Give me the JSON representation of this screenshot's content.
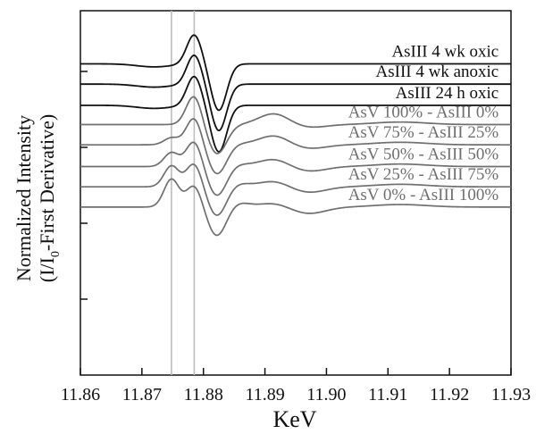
{
  "chart_data": {
    "type": "line",
    "xlabel": "KeV",
    "ylabel_line1": "Normalized Intensity",
    "ylabel_line2_pre": "(I/I",
    "ylabel_line2_sub": "0",
    "ylabel_line2_post": "-First Derivative)",
    "xlim": [
      11.86,
      11.93
    ],
    "xticks": [
      "11.86",
      "11.87",
      "11.88",
      "11.89",
      "11.90",
      "11.91",
      "11.92",
      "11.93"
    ],
    "reference_lines_x": [
      11.8748,
      11.8785
    ],
    "colors": {
      "asIII": "#111111",
      "asV": "#6f6f6f",
      "ref": "#bdbdbd"
    },
    "series": [
      {
        "name": "AsIII 4 wk oxic",
        "family": "asIII",
        "baseline": 6.15,
        "amp": 1.0
      },
      {
        "name": "AsIII 4 wk anoxic",
        "family": "asIII",
        "baseline": 5.75,
        "amp": 1.0
      },
      {
        "name": "AsIII 24 h oxic",
        "family": "asIII",
        "baseline": 5.33,
        "amp": 1.0
      },
      {
        "name": "AsV 100% - AsIII 0%",
        "family": "asV",
        "mix": 0.0,
        "baseline": 4.95
      },
      {
        "name": "AsV 75% - AsIII 25%",
        "family": "asV",
        "mix": 0.25,
        "baseline": 4.55
      },
      {
        "name": "AsV 50% - AsIII 50%",
        "family": "asV",
        "mix": 0.5,
        "baseline": 4.12
      },
      {
        "name": "AsV 25% - AsIII 75%",
        "family": "asV",
        "mix": 0.75,
        "baseline": 3.72
      },
      {
        "name": "AsV 0% - AsIII 100%",
        "family": "asV",
        "mix": 1.0,
        "baseline": 3.32
      }
    ]
  }
}
